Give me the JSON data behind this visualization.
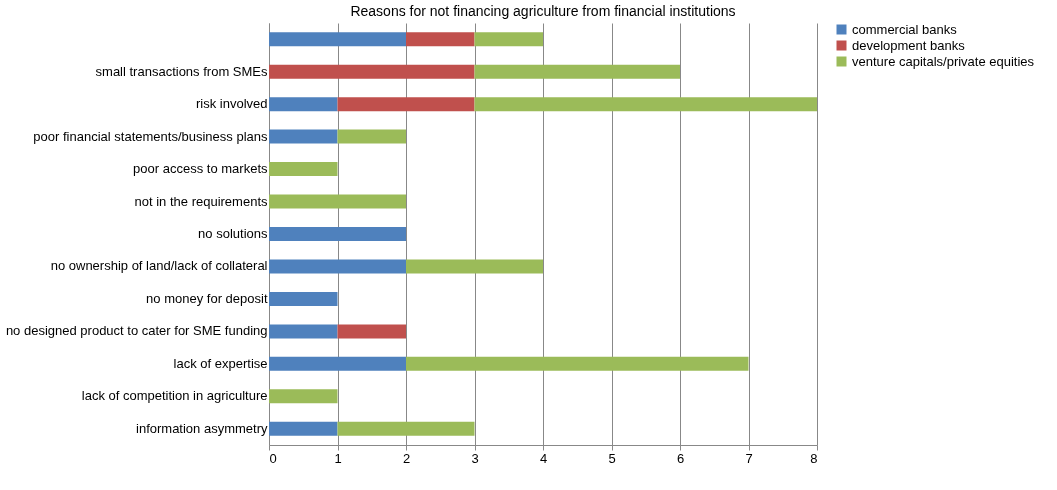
{
  "chart_data": {
    "type": "bar",
    "orientation": "horizontal",
    "stacked": true,
    "title": "Reasons for not financing agriculture from financial institutions",
    "categories": [
      null,
      "small transactions from SMEs",
      "risk involved",
      "poor financial statements/business plans",
      "poor access to markets",
      "not in the requirements",
      "no solutions",
      "no ownership of land/lack of collateral",
      "no money for deposit",
      "no designed product to cater for SME funding",
      "lack of expertise",
      "lack of competition in agriculture",
      "information asymmetry"
    ],
    "series": [
      {
        "name": "commercial banks",
        "color": "#4f81bd",
        "values": [
          2,
          0,
          1,
          1,
          0,
          0,
          2,
          2,
          1,
          1,
          2,
          0,
          1
        ]
      },
      {
        "name": "development banks",
        "color": "#c0504d",
        "values": [
          1,
          3,
          2,
          0,
          0,
          0,
          0,
          0,
          0,
          1,
          0,
          0,
          0
        ]
      },
      {
        "name": "venture capitals/private equities",
        "color": "#9bbb59",
        "values": [
          1,
          3,
          5,
          1,
          1,
          2,
          0,
          2,
          0,
          0,
          5,
          1,
          2
        ]
      }
    ],
    "xlim": [
      0,
      8
    ],
    "xticks": [
      0,
      1,
      2,
      3,
      4,
      5,
      6,
      7,
      8
    ],
    "grid": "x",
    "legend": "right"
  }
}
